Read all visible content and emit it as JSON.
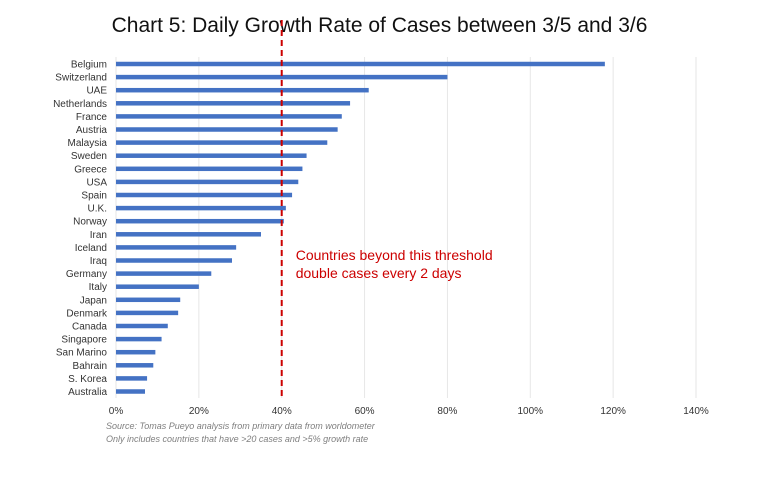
{
  "chart_data": {
    "type": "bar",
    "orientation": "horizontal",
    "title": "Chart 5: Daily Growth Rate of Cases between 3/5 and 3/6",
    "categories": [
      "Belgium",
      "Switzerland",
      "UAE",
      "Netherlands",
      "France",
      "Austria",
      "Malaysia",
      "Sweden",
      "Greece",
      "USA",
      "Spain",
      "U.K.",
      "Norway",
      "Iran",
      "Iceland",
      "Iraq",
      "Germany",
      "Italy",
      "Japan",
      "Denmark",
      "Canada",
      "Singapore",
      "San Marino",
      "Bahrain",
      "S. Korea",
      "Australia"
    ],
    "values": [
      118,
      80,
      61,
      56.5,
      54.5,
      53.5,
      51,
      46,
      45,
      44,
      42.5,
      41,
      40.5,
      35,
      29,
      28,
      23,
      20,
      15.5,
      15,
      12.5,
      11,
      9.5,
      9,
      7.5,
      7
    ],
    "xlim": [
      0,
      140
    ],
    "xticks": [
      "0%",
      "20%",
      "40%",
      "60%",
      "80%",
      "100%",
      "120%",
      "140%"
    ],
    "grid": true,
    "threshold": {
      "value": 40,
      "label_lines": [
        "Countries beyond this threshold",
        "double cases every 2 days"
      ]
    },
    "source_lines": [
      "Source: Tomas Pueyo analysis from primary data from worldometer",
      "Only includes countries that have >20 cases and >5% growth rate"
    ],
    "colors": {
      "bar": "#4472c4",
      "threshold": "#cc0000",
      "grid": "#e6e6e6",
      "text": "#333333"
    }
  }
}
